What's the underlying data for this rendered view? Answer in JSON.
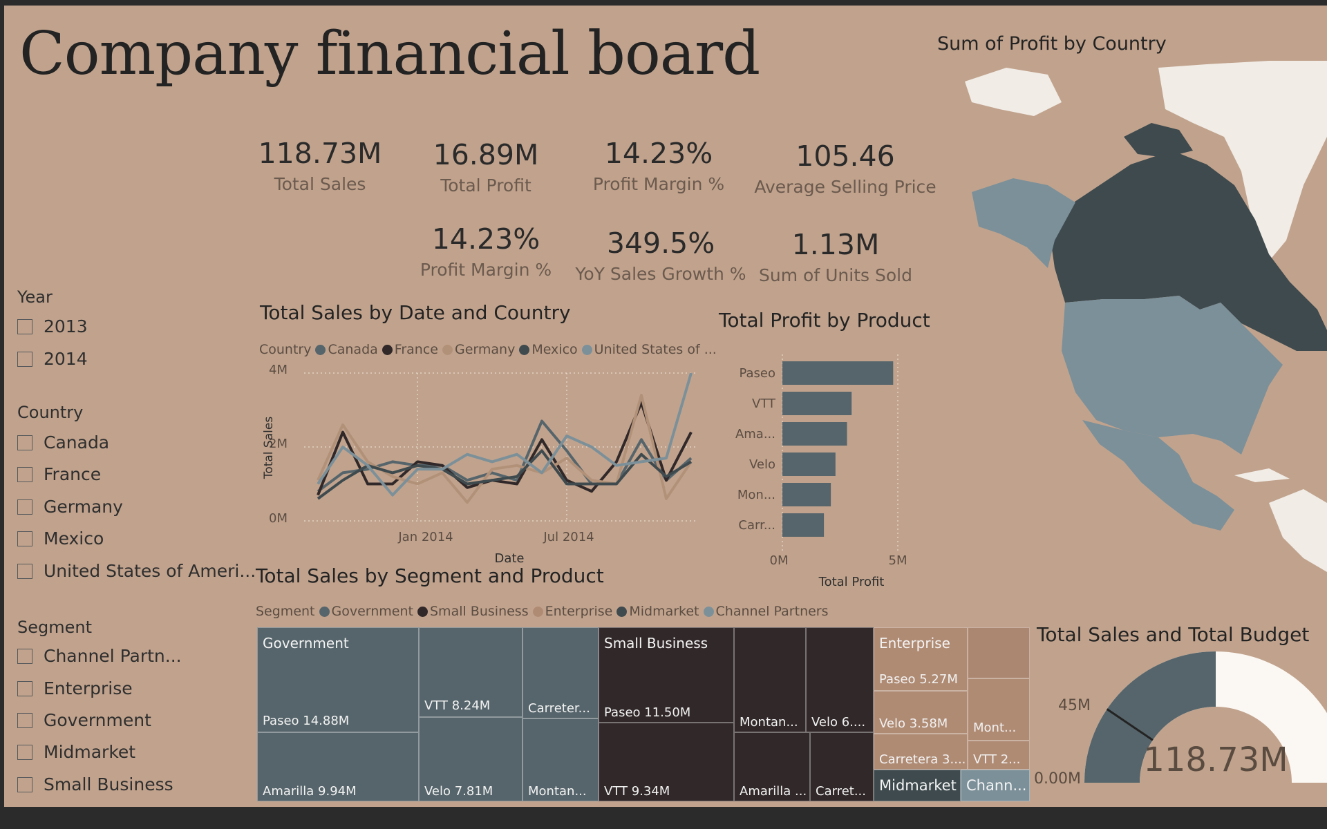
{
  "title": "Company financial board",
  "kpis": [
    {
      "value": "118.73M",
      "label": "Total Sales"
    },
    {
      "value": "16.89M",
      "label": "Total Profit"
    },
    {
      "value": "14.23%",
      "label": "Profit Margin %"
    },
    {
      "value": "105.46",
      "label": "Average Selling Price"
    },
    {
      "value": "14.23%",
      "label": "Profit Margin %"
    },
    {
      "value": "349.5%",
      "label": "YoY Sales Growth %"
    },
    {
      "value": "1.13M",
      "label": "Sum of Units Sold"
    }
  ],
  "slicers": {
    "year": {
      "title": "Year",
      "items": [
        "2013",
        "2014"
      ]
    },
    "country": {
      "title": "Country",
      "items": [
        "Canada",
        "France",
        "Germany",
        "Mexico",
        "United States of Ameri..."
      ]
    },
    "segment": {
      "title": "Segment",
      "items": [
        "Channel Partn...",
        "Enterprise",
        "Government",
        "Midmarket",
        "Small Business"
      ]
    }
  },
  "colors": {
    "background": "#c1a38d",
    "canada": "#56656b",
    "france": "#312829",
    "germany": "#b29179",
    "mexico": "#3e4a4e",
    "usa": "#7c9099",
    "government": "#56656b",
    "small_business": "#312829",
    "enterprise": "#b08b74",
    "midmarket": "#3e4a4e",
    "channel_partners": "#7c9099"
  },
  "line_chart": {
    "title": "Total Sales by Date and Country",
    "legend_title": "Country",
    "legend": [
      "Canada",
      "France",
      "Germany",
      "Mexico",
      "United States of ..."
    ],
    "xlabel": "Date",
    "ylabel": "Total Sales",
    "yticks": [
      "0M",
      "2M",
      "4M"
    ],
    "xticks": [
      "Jan 2014",
      "Jul 2014"
    ]
  },
  "bar_chart": {
    "title": "Total Profit by Product",
    "xlabel": "Total Profit",
    "xticks": [
      "0M",
      "5M"
    ]
  },
  "map": {
    "title": "Sum of Profit by Country"
  },
  "treemap": {
    "title": "Total Sales by Segment and Product",
    "legend_title": "Segment",
    "legend": [
      "Government",
      "Small Business",
      "Enterprise",
      "Midmarket",
      "Channel Partners"
    ],
    "segments": {
      "government": "Government",
      "small_business": "Small Business",
      "enterprise": "Enterprise",
      "midmarket": "Midmarket",
      "channel_partners": "Chann..."
    },
    "tiles": {
      "gov_paseo": "Paseo 14.88M",
      "gov_amarilla": "Amarilla 9.94M",
      "gov_vtt": "VTT 8.24M",
      "gov_velo": "Velo 7.81M",
      "gov_carretera": "Carreter...",
      "gov_montana": "Montan...",
      "sb_paseo": "Paseo 11.50M",
      "sb_vtt": "VTT 9.34M",
      "sb_montana": "Montan...",
      "sb_velo": "Velo 6....",
      "sb_amarilla": "Amarilla ...",
      "sb_carretera": "Carret...",
      "ent_paseo": "Paseo 5.27M",
      "ent_velo": "Velo 3.58M",
      "ent_carretera": "Carretera 3....",
      "ent_montana": "Mont...",
      "ent_vtt": "VTT 2..."
    }
  },
  "gauge": {
    "title": "Total Sales and Total Budget",
    "value_label": "118.73M",
    "min_label": "0.00M",
    "target_label": "45M",
    "min": 0,
    "max": 237.46,
    "value": 118.73,
    "target": 45
  },
  "chart_data": [
    {
      "type": "line",
      "title": "Total Sales by Date and Country",
      "xlabel": "Date",
      "ylabel": "Total Sales",
      "ylim": [
        0,
        4
      ],
      "y_unit": "M",
      "x": [
        "2013-09",
        "2013-10",
        "2013-11",
        "2013-12",
        "2014-01",
        "2014-02",
        "2014-03",
        "2014-04",
        "2014-05",
        "2014-06",
        "2014-07",
        "2014-08",
        "2014-09",
        "2014-10",
        "2014-11",
        "2014-12"
      ],
      "series": [
        {
          "name": "Canada",
          "values": [
            0.8,
            1.3,
            1.4,
            1.6,
            1.5,
            1.5,
            1.1,
            1.3,
            1.1,
            2.7,
            1.9,
            1.0,
            1.0,
            2.2,
            1.1,
            1.7
          ]
        },
        {
          "name": "France",
          "values": [
            0.7,
            2.4,
            1.0,
            1.0,
            1.6,
            1.5,
            0.9,
            1.1,
            1.0,
            2.2,
            1.1,
            0.8,
            1.6,
            3.2,
            1.1,
            2.4
          ]
        },
        {
          "name": "Germany",
          "values": [
            1.1,
            2.6,
            1.6,
            1.2,
            1.0,
            1.3,
            0.5,
            1.4,
            1.5,
            1.3,
            1.7,
            1.1,
            1.0,
            3.4,
            0.6,
            1.6
          ]
        },
        {
          "name": "Mexico",
          "values": [
            0.6,
            1.1,
            1.5,
            1.3,
            1.5,
            1.4,
            1.0,
            1.1,
            1.2,
            1.9,
            1.0,
            1.0,
            1.0,
            1.8,
            1.2,
            1.6
          ]
        },
        {
          "name": "United States of America",
          "values": [
            1.0,
            2.0,
            1.5,
            0.7,
            1.4,
            1.4,
            1.8,
            1.6,
            1.8,
            1.3,
            2.3,
            2.0,
            1.5,
            1.6,
            1.7,
            4.0
          ]
        }
      ]
    },
    {
      "type": "bar",
      "orientation": "horizontal",
      "title": "Total Profit by Product",
      "xlabel": "Total Profit",
      "xlim": [
        0,
        5.5
      ],
      "x_unit": "M",
      "categories": [
        "Paseo",
        "VTT",
        "Ama...",
        "Velo",
        "Mon...",
        "Carr..."
      ],
      "values": [
        4.8,
        3.0,
        2.8,
        2.3,
        2.1,
        1.8
      ]
    },
    {
      "type": "treemap",
      "title": "Total Sales by Segment and Product",
      "values": [
        {
          "segment": "Government",
          "product": "Paseo",
          "value": 14.88
        },
        {
          "segment": "Government",
          "product": "Amarilla",
          "value": 9.94
        },
        {
          "segment": "Government",
          "product": "VTT",
          "value": 8.24
        },
        {
          "segment": "Government",
          "product": "Velo",
          "value": 7.81
        },
        {
          "segment": "Small Business",
          "product": "Paseo",
          "value": 11.5
        },
        {
          "segment": "Small Business",
          "product": "VTT",
          "value": 9.34
        },
        {
          "segment": "Enterprise",
          "product": "Paseo",
          "value": 5.27
        },
        {
          "segment": "Enterprise",
          "product": "Velo",
          "value": 3.58
        }
      ]
    }
  ]
}
